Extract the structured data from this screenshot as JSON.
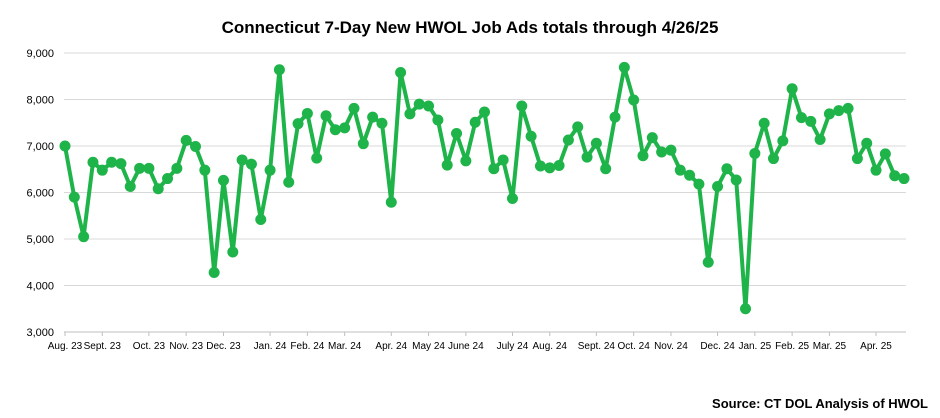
{
  "chart_data": {
    "type": "line",
    "title": "Connecticut 7-Day New HWOL Job Ads totals through 4/26/25",
    "source": "Source: CT DOL Analysis of HWOL",
    "ylim": [
      3000,
      9000
    ],
    "yticks": [
      "3,000",
      "4,000",
      "5,000",
      "6,000",
      "7,000",
      "8,000",
      "9,000"
    ],
    "ytick_values": [
      3000,
      4000,
      5000,
      6000,
      7000,
      8000,
      9000
    ],
    "grid": true,
    "color": "#1fb44a",
    "x_labels": [
      {
        "label": "Aug. 23",
        "index": 0
      },
      {
        "label": "Sept. 23",
        "index": 4
      },
      {
        "label": "Oct. 23",
        "index": 9
      },
      {
        "label": "Nov. 23",
        "index": 13
      },
      {
        "label": "Dec. 23",
        "index": 17
      },
      {
        "label": "Jan. 24",
        "index": 22
      },
      {
        "label": "Feb. 24",
        "index": 26
      },
      {
        "label": "Mar. 24",
        "index": 30
      },
      {
        "label": "Apr. 24",
        "index": 35
      },
      {
        "label": "May 24",
        "index": 39
      },
      {
        "label": "June 24",
        "index": 43
      },
      {
        "label": "July 24",
        "index": 48
      },
      {
        "label": "Aug. 24",
        "index": 52
      },
      {
        "label": "Sept. 24",
        "index": 57
      },
      {
        "label": "Oct. 24",
        "index": 61
      },
      {
        "label": "Nov. 24",
        "index": 65
      },
      {
        "label": "Dec. 24",
        "index": 70
      },
      {
        "label": "Jan. 25",
        "index": 74
      },
      {
        "label": "Feb. 25",
        "index": 78
      },
      {
        "label": "Mar. 25",
        "index": 82
      },
      {
        "label": "Apr. 25",
        "index": 87
      }
    ],
    "series": [
      {
        "values": [
          7000,
          5900,
          5050,
          6650,
          6480,
          6650,
          6620,
          6130,
          6520,
          6520,
          6080,
          6300,
          6520,
          7120,
          6990,
          6480,
          4280,
          6260,
          4720,
          6700,
          6610,
          5420,
          6480,
          8640,
          6220,
          7480,
          7700,
          6740,
          7650,
          7350,
          7390,
          7810,
          7050,
          7620,
          7490,
          5790,
          8580,
          7690,
          7900,
          7860,
          7560,
          6590,
          7270,
          6680,
          7510,
          7730,
          6510,
          6700,
          5870,
          7860,
          7210,
          6570,
          6530,
          6580,
          7130,
          7410,
          6760,
          7060,
          6510,
          7620,
          8690,
          7990,
          6790,
          7180,
          6870,
          6910,
          6480,
          6370,
          6180,
          4500,
          6130,
          6510,
          6270,
          3500,
          6840,
          7490,
          6730,
          7110,
          8230,
          7610,
          7530,
          7140,
          7690,
          7760,
          7810,
          6730,
          7060,
          6480,
          6830,
          6360,
          6300
        ]
      }
    ]
  }
}
